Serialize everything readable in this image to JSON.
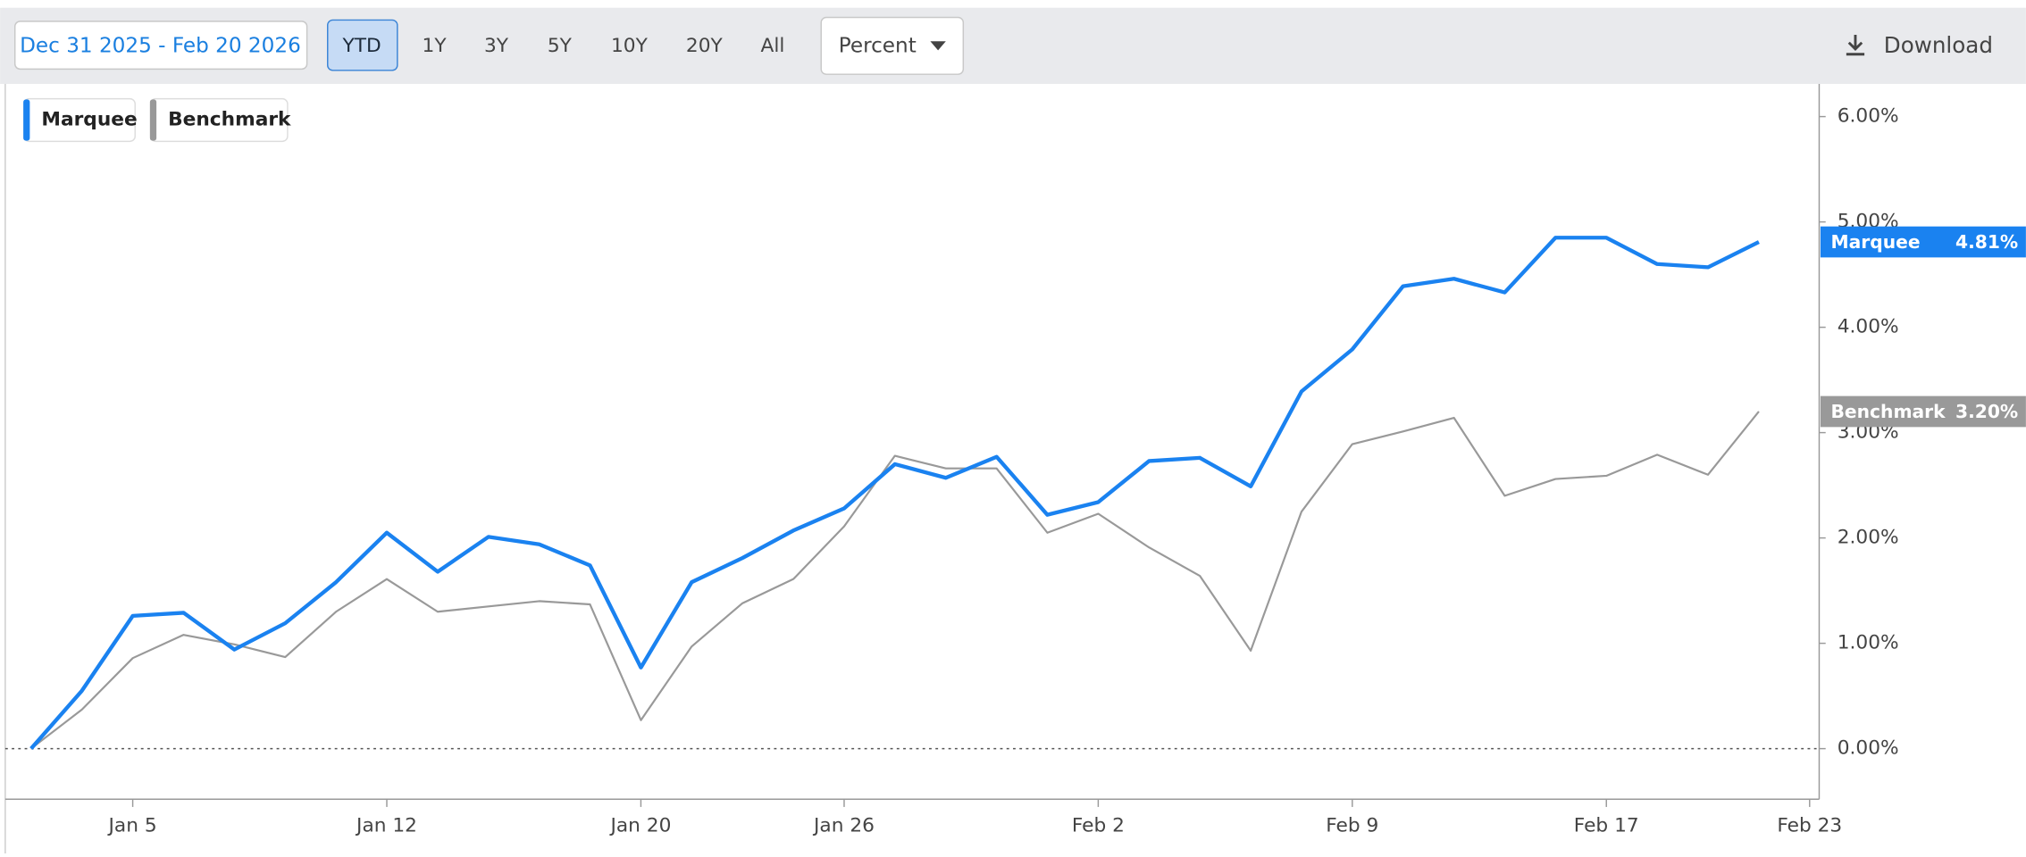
{
  "toolbar": {
    "date_range": "Dec 31 2025 - Feb 20 2026",
    "periods": [
      "YTD",
      "1Y",
      "3Y",
      "5Y",
      "10Y",
      "20Y",
      "All"
    ],
    "mode": "Percent",
    "download": "Download"
  },
  "chart_data": {
    "type": "line",
    "categories": [
      null,
      null,
      "Jan 5",
      null,
      null,
      null,
      null,
      "Jan 12",
      null,
      null,
      null,
      null,
      "Jan 20",
      null,
      null,
      null,
      "Jan 26",
      null,
      null,
      null,
      null,
      "Feb 2",
      null,
      null,
      null,
      null,
      "Feb 9",
      null,
      null,
      null,
      null,
      "Feb 17",
      null,
      null,
      null,
      "Feb 23"
    ],
    "series": [
      {
        "name": "Marquee",
        "color": "#1a82f0",
        "values": [
          0,
          0.55,
          1.26,
          1.29,
          0.94,
          1.19,
          1.58,
          2.05,
          1.68,
          2.01,
          1.94,
          1.74,
          0.77,
          1.58,
          1.81,
          2.07,
          2.28,
          2.7,
          2.57,
          2.77,
          2.22,
          2.34,
          2.73,
          2.76,
          2.49,
          3.39,
          3.79,
          4.39,
          4.46,
          4.33,
          4.85,
          4.85,
          4.6,
          4.57,
          4.81,
          null
        ],
        "value_labels": [
          null,
          null,
          null,
          null,
          null,
          null,
          null,
          null,
          null,
          null,
          null,
          null,
          null,
          null,
          null,
          null,
          null,
          null,
          null,
          null,
          null,
          null,
          null,
          null,
          null,
          null,
          null,
          null,
          null,
          null,
          null,
          null,
          null,
          null,
          "4.81%",
          null
        ]
      },
      {
        "name": "Benchmark",
        "color": "#999999",
        "values": [
          0,
          0.37,
          0.86,
          1.08,
          0.99,
          0.87,
          1.3,
          1.61,
          1.3,
          1.35,
          1.4,
          1.37,
          0.27,
          0.97,
          1.38,
          1.61,
          2.11,
          2.78,
          2.66,
          2.66,
          2.05,
          2.23,
          1.91,
          1.64,
          0.93,
          2.25,
          2.89,
          3.01,
          3.14,
          2.4,
          2.56,
          2.59,
          2.79,
          2.6,
          3.2,
          null
        ],
        "value_labels": [
          null,
          null,
          null,
          null,
          null,
          null,
          null,
          null,
          null,
          null,
          null,
          null,
          null,
          null,
          null,
          null,
          null,
          null,
          null,
          null,
          null,
          null,
          null,
          null,
          null,
          null,
          null,
          null,
          null,
          null,
          null,
          null,
          null,
          null,
          "3.20%",
          null
        ]
      }
    ],
    "ylim": [
      -0.48,
      6.31
    ],
    "yticks": [
      {
        "value": 0,
        "label": "0.00%"
      },
      {
        "value": 1,
        "label": "1.00%"
      },
      {
        "value": 2,
        "label": "2.00%"
      },
      {
        "value": 3,
        "label": "3.00%"
      },
      {
        "value": 4,
        "label": "4.00%"
      },
      {
        "value": 5,
        "label": "5.00%"
      },
      {
        "value": 6,
        "label": "6.00%"
      }
    ],
    "y_axis_side": "right"
  }
}
